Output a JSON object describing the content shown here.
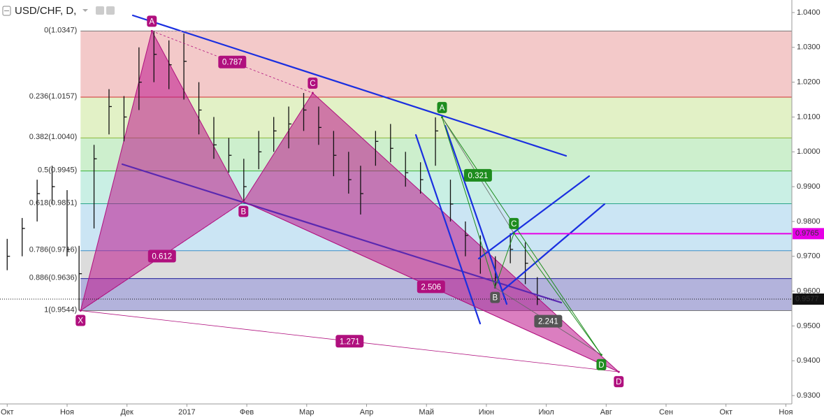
{
  "chart_data": {
    "type": "ohlc",
    "title": "USD/CHF, D,",
    "xlim": [
      -0.12,
      13.1
    ],
    "ylim": [
      0.9276,
      1.0436
    ],
    "xticks": [
      {
        "value": 0,
        "label": "Окт"
      },
      {
        "value": 1,
        "label": "Ноя"
      },
      {
        "value": 2,
        "label": "Дек"
      },
      {
        "value": 3,
        "label": "2017"
      },
      {
        "value": 4,
        "label": "Фев"
      },
      {
        "value": 5,
        "label": "Мар"
      },
      {
        "value": 6,
        "label": "Апр"
      },
      {
        "value": 7,
        "label": "Май"
      },
      {
        "value": 8,
        "label": "Июн"
      },
      {
        "value": 9,
        "label": "Июл"
      },
      {
        "value": 10,
        "label": "Авг"
      },
      {
        "value": 11,
        "label": "Сен"
      },
      {
        "value": 12,
        "label": "Окт"
      },
      {
        "value": 13,
        "label": "Ноя"
      }
    ],
    "yticks": [
      {
        "value": 1.04,
        "label": "1.0400"
      },
      {
        "value": 1.03,
        "label": "1.0300"
      },
      {
        "value": 1.02,
        "label": "1.0200"
      },
      {
        "value": 1.01,
        "label": "1.0100"
      },
      {
        "value": 1.0,
        "label": "1.0000"
      },
      {
        "value": 0.99,
        "label": "0.9900"
      },
      {
        "value": 0.98,
        "label": "0.9800"
      },
      {
        "value": 0.97,
        "label": "0.9700"
      },
      {
        "value": 0.96,
        "label": "0.9600"
      },
      {
        "value": 0.95,
        "label": "0.9500"
      },
      {
        "value": 0.94,
        "label": "0.9400"
      },
      {
        "value": 0.93,
        "label": "0.9300"
      }
    ],
    "color": "#111111",
    "x": [
      0.0,
      0.25,
      0.5,
      0.75,
      1.0,
      1.2,
      1.45,
      1.7,
      1.95,
      2.2,
      2.45,
      2.7,
      2.95,
      3.2,
      3.45,
      3.7,
      3.95,
      4.2,
      4.45,
      4.7,
      4.95,
      5.2,
      5.45,
      5.7,
      5.9,
      6.15,
      6.4,
      6.65,
      6.9,
      7.15,
      7.4,
      7.65,
      7.9,
      8.15,
      8.4,
      8.65,
      8.85
    ],
    "high": [
      0.975,
      0.981,
      0.992,
      0.996,
      0.989,
      0.973,
      1.002,
      1.018,
      1.016,
      1.03,
      1.0347,
      1.032,
      1.034,
      1.02,
      1.01,
      1.004,
      0.998,
      1.006,
      1.01,
      1.013,
      1.0169,
      1.013,
      1.006,
      1.0,
      0.996,
      1.006,
      1.008,
      1.0,
      0.997,
      1.0099,
      0.992,
      0.98,
      0.976,
      0.97,
      0.9766,
      0.974,
      0.964
    ],
    "low": [
      0.966,
      0.97,
      0.98,
      0.985,
      0.97,
      0.9544,
      0.978,
      1.005,
      1.003,
      1.012,
      1.02,
      1.018,
      1.015,
      1.005,
      0.998,
      0.994,
      0.9857,
      0.995,
      1.0,
      1.001,
      1.006,
      1.002,
      0.993,
      0.988,
      0.982,
      0.996,
      0.997,
      0.99,
      0.988,
      0.996,
      0.98,
      0.97,
      0.965,
      0.961,
      0.968,
      0.962,
      0.956
    ],
    "close": [
      0.97,
      0.978,
      0.988,
      0.99,
      0.972,
      0.965,
      0.998,
      1.013,
      1.01,
      1.02,
      1.028,
      1.025,
      1.026,
      1.012,
      1.002,
      0.999,
      0.99,
      1.0,
      1.006,
      1.008,
      1.012,
      1.007,
      0.999,
      0.992,
      0.988,
      1.003,
      1.001,
      0.994,
      0.992,
      1.006,
      0.985,
      0.976,
      0.97,
      0.964,
      0.972,
      0.968,
      0.9577
    ],
    "fib_levels": [
      {
        "value": 1.0347,
        "label": "0(1.0347)",
        "color": "#787878"
      },
      {
        "value": 1.0157,
        "label": "0.236(1.0157)",
        "color": "#d03030"
      },
      {
        "value": 1.004,
        "label": "0.382(1.0040)",
        "color": "#8db83b"
      },
      {
        "value": 0.9945,
        "label": "0.5(0.9945)",
        "color": "#3cb33c"
      },
      {
        "value": 0.9851,
        "label": "0.618(0.9851)",
        "color": "#2ba58a"
      },
      {
        "value": 0.9716,
        "label": "0.786(0.9716)",
        "color": "#3d8fc5"
      },
      {
        "value": 0.9636,
        "label": "0.886(0.9636)",
        "color": "#22229a"
      },
      {
        "value": 0.9544,
        "label": "1(0.9544)",
        "color": "#787878"
      }
    ],
    "fib_band_colors": [
      "#f3c9c9",
      "#e2f1c6",
      "#cdefcd",
      "#c9efe4",
      "#cbe5f4",
      "#dcdcdc",
      "#b3b3dc"
    ],
    "patterns": [
      {
        "color": "#b0107e",
        "points": [
          {
            "label": "X",
            "x": 1.225,
            "y": 0.9544
          },
          {
            "label": "A",
            "x": 2.415,
            "y": 1.0347
          },
          {
            "label": "B",
            "x": 3.944,
            "y": 0.9857
          },
          {
            "label": "C",
            "x": 5.1,
            "y": 1.0169
          },
          {
            "label": "D",
            "x": 10.21,
            "y": 0.9368
          }
        ],
        "ratios": [
          0.612,
          0.787,
          2.506,
          1.271
        ]
      },
      {
        "color": "#1e8c1e",
        "points": [
          {
            "label": "A",
            "x": 7.26,
            "y": 1.0099
          },
          {
            "label": "B",
            "x": 8.145,
            "y": 0.961
          },
          {
            "label": "C",
            "x": 8.46,
            "y": 0.9766
          },
          {
            "label": "D",
            "x": 9.92,
            "y": 0.9417
          }
        ],
        "ratios": [
          0.321,
          2.241
        ]
      }
    ],
    "price_lines": [
      {
        "value": 0.9765,
        "label": "0.9765",
        "color": "#e600e6"
      },
      {
        "value": 0.9577,
        "label": "0.9577",
        "color": "#111111"
      }
    ]
  }
}
